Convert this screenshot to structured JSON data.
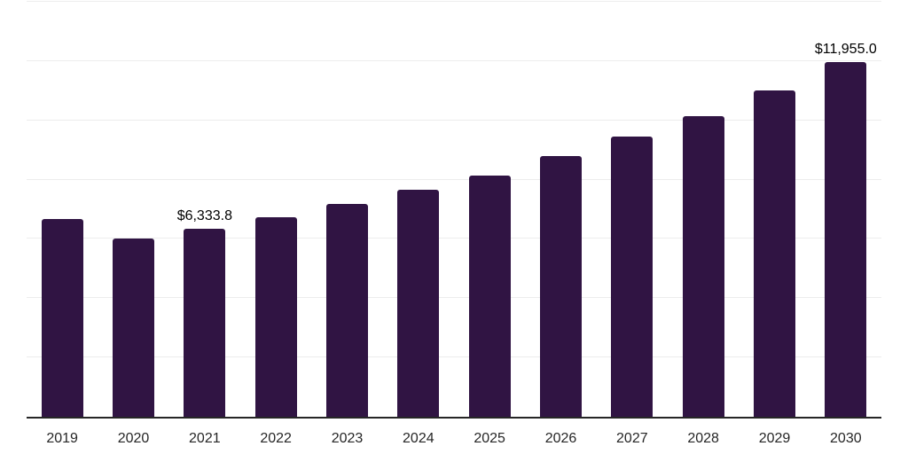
{
  "chart_data": {
    "type": "bar",
    "title": "",
    "xlabel": "",
    "ylabel": "",
    "categories": [
      "2019",
      "2020",
      "2021",
      "2022",
      "2023",
      "2024",
      "2025",
      "2026",
      "2027",
      "2028",
      "2029",
      "2030"
    ],
    "values": [
      6670,
      6020,
      6333.8,
      6720,
      7170,
      7650,
      8150,
      8790,
      9450,
      10150,
      11020,
      11955
    ],
    "annotations": [
      {
        "category_index": 2,
        "text": "$6,333.8"
      },
      {
        "category_index": 11,
        "text": "$11,955.0"
      }
    ],
    "ylim": [
      0,
      14000
    ],
    "gridline_step": 2000,
    "grid": "horizontal",
    "legend_position": "none",
    "y_tick_labels_visible": false,
    "colors": {
      "bar": "#301443",
      "gridline": "#ededed",
      "axis_line": "#262626",
      "tick_label": "#262626",
      "value_label": "#000000"
    }
  }
}
